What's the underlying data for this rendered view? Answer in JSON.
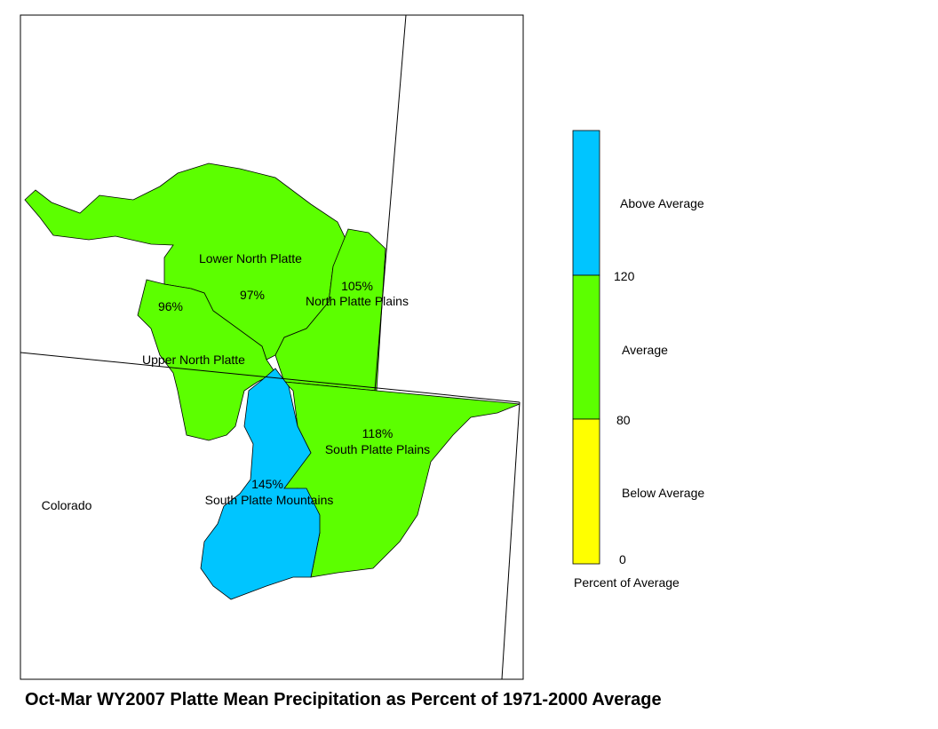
{
  "title": "Oct-Mar WY2007 Platte Mean Precipitation as Percent of 1971-2000 Average",
  "regions": [
    {
      "name": "Lower North Platte",
      "label": "97%"
    },
    {
      "name": "North Platte Plains",
      "label": "105%"
    },
    {
      "name": "Upper North Platte",
      "label": "96%"
    },
    {
      "name": "South Platte Plains",
      "label": "118%"
    },
    {
      "name": "South Platte Mountains",
      "label": "145%"
    }
  ],
  "state_label": "Colorado",
  "legend": {
    "title": "Percent of Average",
    "classes": [
      "Above Average",
      "Average",
      "Below Average"
    ],
    "breaks": [
      "120",
      "80",
      "0"
    ]
  }
}
